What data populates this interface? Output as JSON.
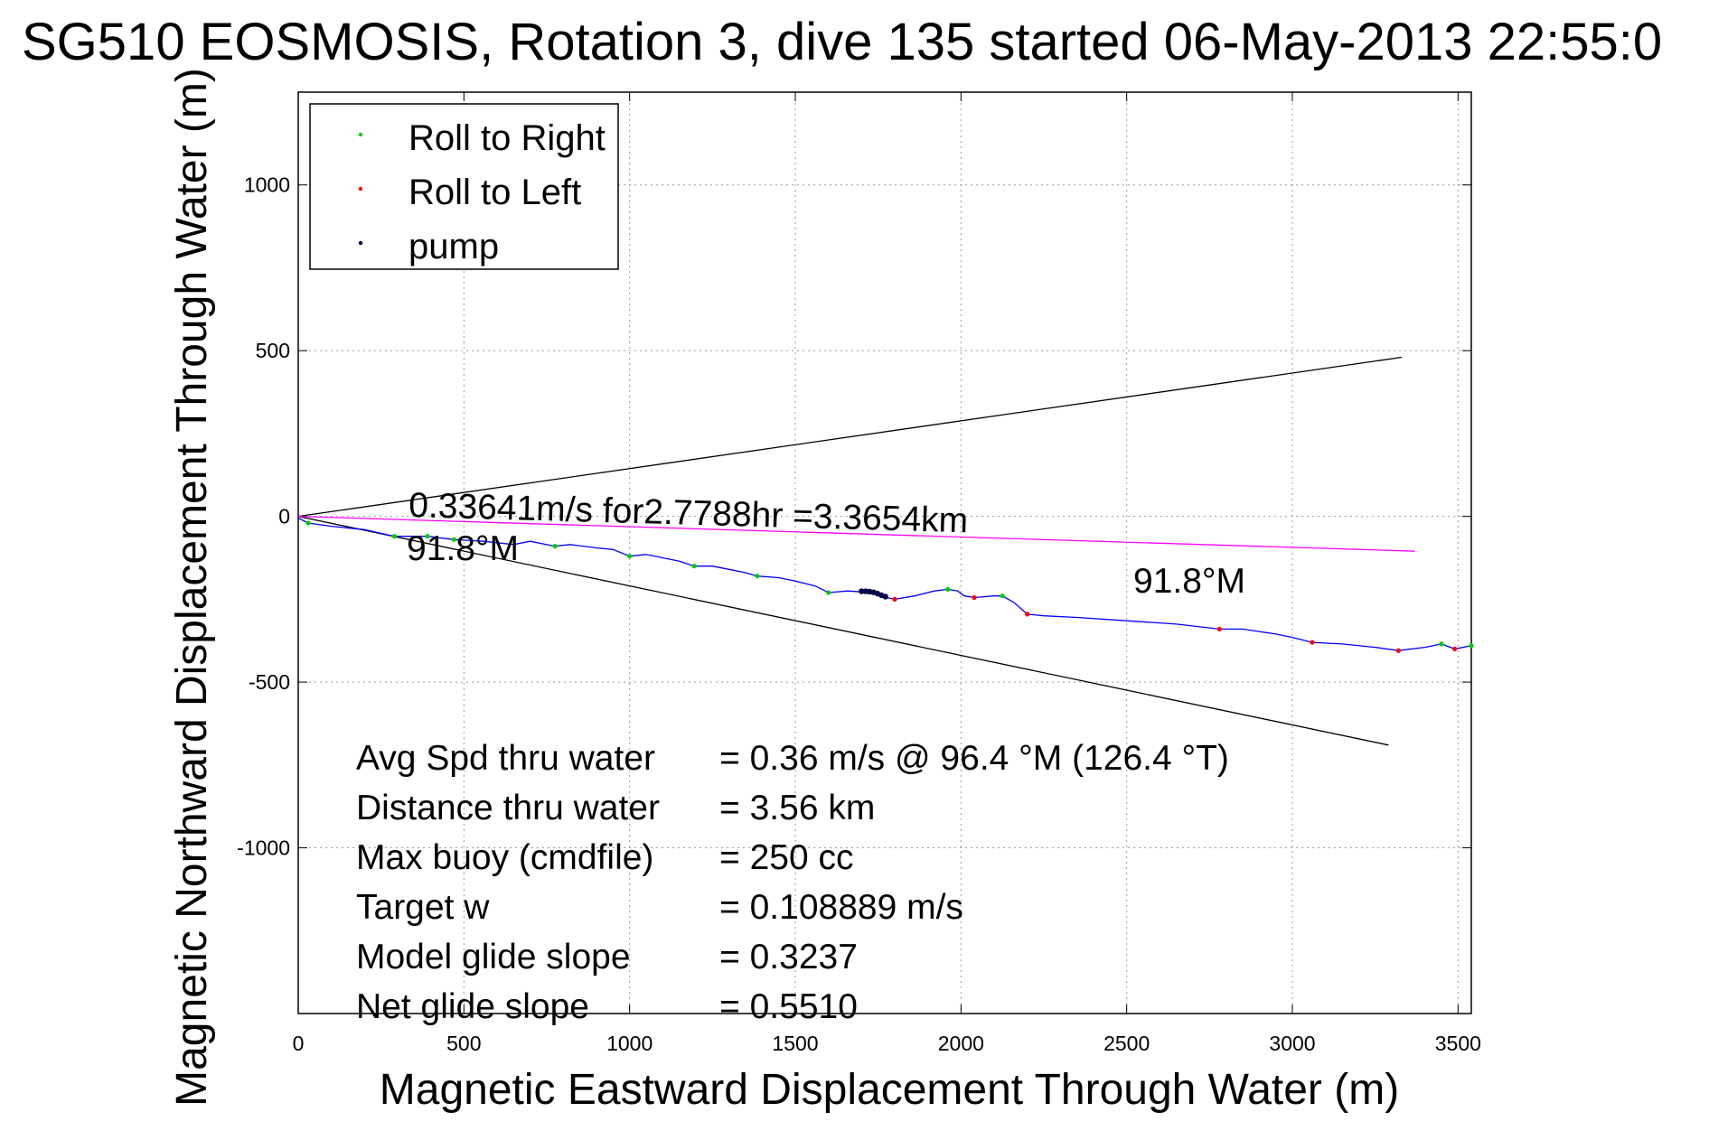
{
  "chart_data": {
    "type": "line",
    "title": "SG510 EOSMOSIS, Rotation 3, dive 135 started 06-May-2013 22:55:0",
    "xlabel": "Magnetic Eastward Displacement Through Water (m)",
    "ylabel": "Magnetic Northward Displacement Through Water (m)",
    "xlim": [
      0,
      3540
    ],
    "ylim": [
      -1500,
      1280
    ],
    "xticks": [
      0,
      500,
      1000,
      1500,
      2000,
      2500,
      3000,
      3500
    ],
    "xtick_labels": [
      "0",
      "500",
      "1000",
      "1500",
      "2000",
      "2500",
      "3000",
      "3500"
    ],
    "yticks": [
      -1000,
      -500,
      0,
      500,
      1000
    ],
    "ytick_labels": [
      "-1000",
      "-500",
      "0",
      "500",
      "1000"
    ],
    "grid": true,
    "legend_position": "top-left",
    "legend": [
      {
        "label": "Roll to Right",
        "color": "#00cc00"
      },
      {
        "label": "Roll to Left",
        "color": "#ff0000"
      },
      {
        "label": "pump",
        "color": "#000044"
      }
    ],
    "track": {
      "color": "#0000ff",
      "x": [
        0,
        30,
        100,
        200,
        290,
        390,
        470,
        560,
        650,
        700,
        775,
        820,
        900,
        950,
        1000,
        1050,
        1100,
        1150,
        1195,
        1250,
        1300,
        1350,
        1385,
        1450,
        1500,
        1560,
        1600,
        1660,
        1700,
        1740,
        1775,
        1800,
        1860,
        1920,
        1960,
        1990,
        2010,
        2040,
        2100,
        2125,
        2160,
        2200,
        2250,
        2350,
        2500,
        2650,
        2780,
        2850,
        2950,
        3000,
        3060,
        3150,
        3250,
        3320,
        3400,
        3450,
        3490,
        3540
      ],
      "y": [
        -5,
        -20,
        -30,
        -40,
        -60,
        -60,
        -70,
        -75,
        -85,
        -75,
        -90,
        -85,
        -95,
        -100,
        -120,
        -115,
        -125,
        -135,
        -150,
        -150,
        -160,
        -170,
        -180,
        -185,
        -195,
        -210,
        -230,
        -225,
        -228,
        -235,
        -245,
        -250,
        -240,
        -225,
        -220,
        -225,
        -240,
        -245,
        -240,
        -240,
        -260,
        -295,
        -300,
        -305,
        -315,
        -325,
        -340,
        -340,
        -355,
        -365,
        -380,
        -385,
        -395,
        -405,
        -395,
        -385,
        -400,
        -390
      ]
    },
    "roll_right": {
      "color": "#00cc00",
      "x": [
        30,
        290,
        390,
        470,
        775,
        1000,
        1195,
        1385,
        1600,
        1960,
        2125,
        3450,
        3540
      ],
      "y": [
        -20,
        -60,
        -60,
        -70,
        -90,
        -120,
        -150,
        -180,
        -230,
        -220,
        -240,
        -385,
        -390
      ]
    },
    "roll_left": {
      "color": "#ff0000",
      "x": [
        1800,
        2040,
        2200,
        2780,
        3060,
        3320,
        3490
      ],
      "y": [
        -250,
        -245,
        -295,
        -340,
        -380,
        -405,
        -400
      ]
    },
    "pump": {
      "color": "#000044",
      "x": [
        1700,
        1712,
        1724,
        1736,
        1748,
        1760,
        1772
      ],
      "y": [
        -226,
        -226,
        -227,
        -229,
        -233,
        -238,
        -242
      ]
    },
    "reference_lines": [
      {
        "name": "upper-bound",
        "color": "#000000",
        "x": [
          0,
          3330
        ],
        "y": [
          0,
          480
        ]
      },
      {
        "name": "lower-bound",
        "color": "#000000",
        "x": [
          0,
          3290
        ],
        "y": [
          0,
          -690
        ]
      },
      {
        "name": "heading",
        "color": "#ff00ff",
        "x": [
          0,
          3370
        ],
        "y": [
          0,
          -105
        ]
      }
    ],
    "annotations": {
      "speed": "0.33641m/s for2.7788hr =3.3654km",
      "heading_left": "91.8°M",
      "heading_right": "91.8°M"
    },
    "stats": [
      {
        "label": "Avg Spd thru water",
        "value": "=  0.36 m/s @  96.4 °M (126.4 °T)"
      },
      {
        "label": "Distance thru water",
        "value": "=  3.56 km"
      },
      {
        "label": "Max buoy (cmdfile)",
        "value": "= 250 cc"
      },
      {
        "label": "Target w",
        "value": "= 0.108889 m/s"
      },
      {
        "label": "Model glide slope",
        "value": "= 0.3237"
      },
      {
        "label": "Net glide slope",
        "value": "= 0.5510"
      }
    ]
  }
}
